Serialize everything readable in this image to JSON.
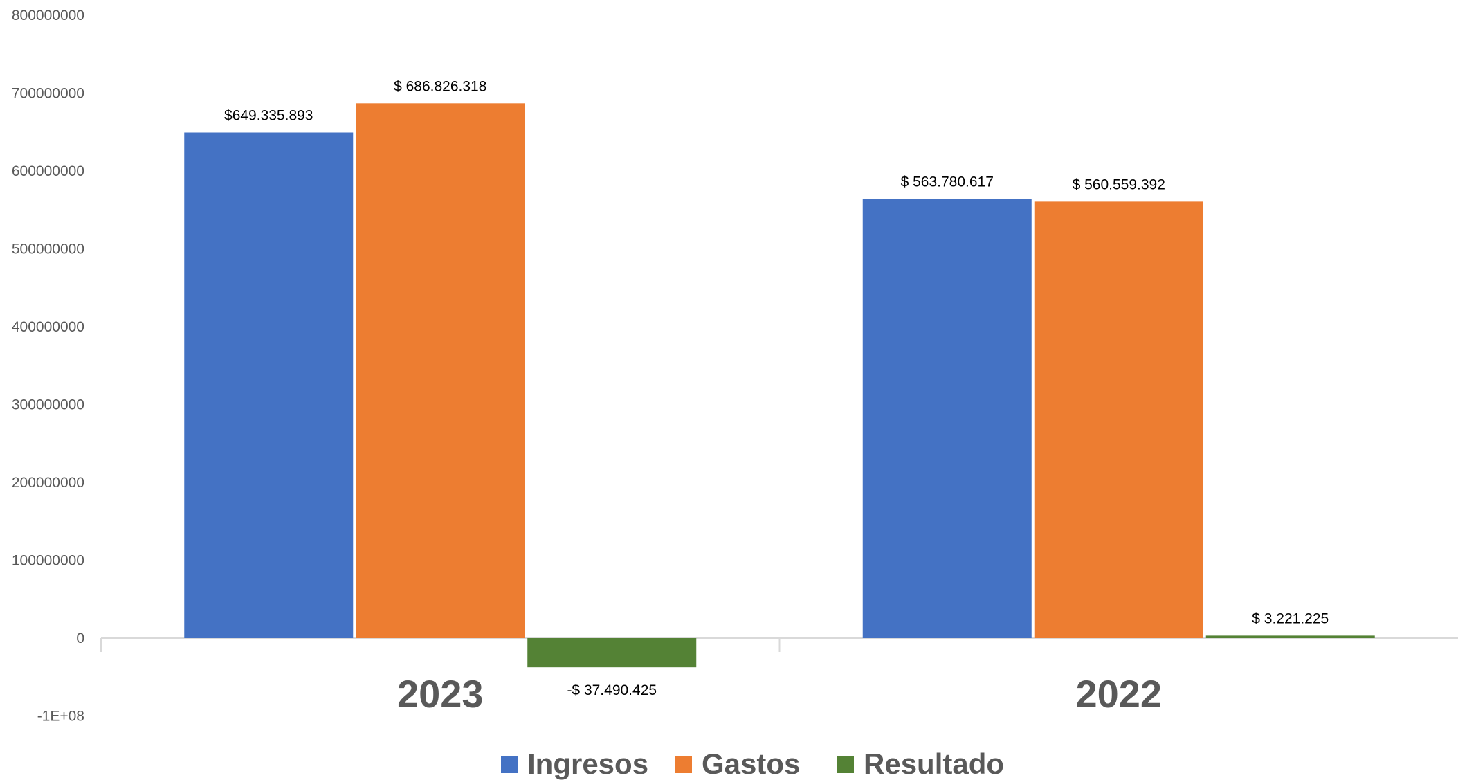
{
  "chart_data": {
    "type": "bar",
    "categories": [
      "2023",
      "2022"
    ],
    "series": [
      {
        "name": "Ingresos",
        "color": "#4472C4",
        "values": [
          649335893,
          563780617
        ],
        "labels": [
          "$649.335.893",
          "$ 563.780.617"
        ]
      },
      {
        "name": "Gastos",
        "color": "#ED7D31",
        "values": [
          686826318,
          560559392
        ],
        "labels": [
          "$ 686.826.318",
          "$ 560.559.392"
        ]
      },
      {
        "name": "Resultado",
        "color": "#548235",
        "values": [
          -37490425,
          3221225
        ],
        "labels": [
          "-$ 37.490.425",
          "$ 3.221.225"
        ]
      }
    ],
    "ylim": [
      -100000000,
      800000000
    ],
    "yticks": [
      {
        "value": 800000000,
        "label": "800000000"
      },
      {
        "value": 700000000,
        "label": "700000000"
      },
      {
        "value": 600000000,
        "label": "600000000"
      },
      {
        "value": 500000000,
        "label": "500000000"
      },
      {
        "value": 400000000,
        "label": "400000000"
      },
      {
        "value": 300000000,
        "label": "300000000"
      },
      {
        "value": 200000000,
        "label": "200000000"
      },
      {
        "value": 100000000,
        "label": "100000000"
      },
      {
        "value": 0,
        "label": "0"
      },
      {
        "value": -100000000,
        "label": "-1E+08"
      }
    ],
    "grid": false,
    "legend": "bottom",
    "title": "",
    "xlabel": "",
    "ylabel": ""
  }
}
